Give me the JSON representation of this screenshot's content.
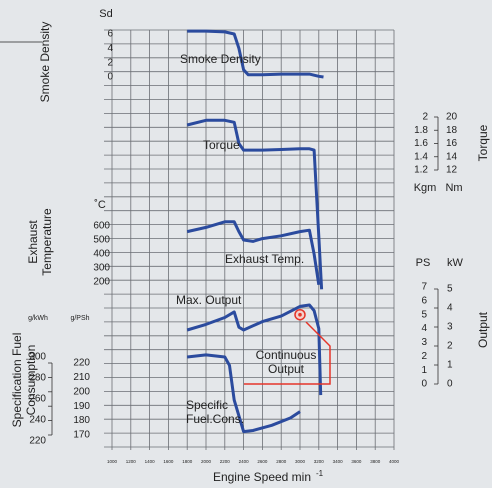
{
  "chart_data": {
    "type": "line",
    "xlabel": "Engine Speed min",
    "xlabel_sup": "-1",
    "xlim": [
      1000,
      4000
    ],
    "xticks": [
      1000,
      1200,
      1400,
      1600,
      1800,
      2000,
      2200,
      2400,
      2600,
      2800,
      3000,
      3200,
      3400,
      3600,
      3800,
      4000
    ],
    "grid": true,
    "color": "#2b4b9e",
    "annotation_color": "#e5352a",
    "panels": [
      {
        "title": [
          "Smoke Density"
        ],
        "annotation": [
          "Smoke Density"
        ],
        "axes": [
          {
            "unit": "Sd",
            "ylim": [
              0,
              6
            ],
            "yticks": [
              0,
              2,
              4,
              6
            ]
          }
        ],
        "x": [
          1800,
          2000,
          2200,
          2300,
          2350,
          2400,
          2450,
          2600,
          2800,
          3000,
          3100,
          3200,
          3250
        ],
        "values": [
          6.4,
          6.4,
          6.3,
          6,
          4,
          1,
          0.3,
          0.3,
          0.4,
          0.4,
          0.4,
          0.1,
          0
        ]
      },
      {
        "title": [
          "Torque"
        ],
        "annotation": [
          "Torque"
        ],
        "axes": [
          {
            "unit": "Kgm",
            "ylim": [
              1.2,
              2.0
            ],
            "yticks": [
              1.2,
              1.4,
              1.6,
              1.8,
              2.0
            ]
          },
          {
            "unit": "Nm",
            "ylim": [
              12,
              20
            ],
            "yticks": [
              12,
              14,
              16,
              18,
              20
            ]
          }
        ],
        "x": [
          1800,
          2000,
          2200,
          2300,
          2350,
          2400,
          2600,
          2800,
          3000,
          3100,
          3150,
          3200,
          3230
        ],
        "values": [
          1.88,
          1.95,
          1.95,
          1.92,
          1.6,
          1.5,
          1.5,
          1.51,
          1.52,
          1.52,
          1.5,
          0.2,
          -0.6
        ]
      },
      {
        "title": [
          "Exhaust",
          "Temperature"
        ],
        "annotation": [
          "Exhaust Temp."
        ],
        "axes": [
          {
            "unit": "˚C",
            "ylim": [
              200,
              600
            ],
            "yticks": [
              200,
              300,
              400,
              500,
              600
            ]
          }
        ],
        "x": [
          1800,
          2000,
          2200,
          2300,
          2350,
          2400,
          2500,
          2600,
          2800,
          3000,
          3100,
          3150,
          3200
        ],
        "values": [
          560,
          590,
          630,
          630,
          560,
          500,
          490,
          510,
          530,
          560,
          570,
          400,
          180
        ]
      },
      {
        "title": [
          "Output"
        ],
        "annotation": [
          "Max. Output"
        ],
        "axes": [
          {
            "unit": "PS",
            "ylim": [
              0,
              7
            ],
            "yticks": [
              0,
              1,
              2,
              3,
              4,
              5,
              6,
              7
            ]
          },
          {
            "unit": "kW",
            "ylim": [
              0,
              5
            ],
            "yticks": [
              0,
              1,
              2,
              3,
              4,
              5
            ]
          }
        ],
        "x": [
          1800,
          2000,
          2200,
          2300,
          2350,
          2400,
          2600,
          2800,
          3000,
          3100,
          3150,
          3200,
          3220
        ],
        "values": [
          3.9,
          4.3,
          4.8,
          5.2,
          4.1,
          3.9,
          4.5,
          4.9,
          5.6,
          5.7,
          5.3,
          4.0,
          -0.8
        ],
        "marker": {
          "x": 3000,
          "value": 5,
          "label": [
            "Continuous",
            "Output"
          ]
        }
      },
      {
        "title": [
          "Specification Fuel",
          "Consumption"
        ],
        "annotation": [
          "Specific",
          "Fuel.Cons."
        ],
        "axes": [
          {
            "unit": "g/kWh",
            "ylim": [
              220,
              300
            ],
            "yticks": [
              220,
              240,
              260,
              280,
              300
            ]
          },
          {
            "unit": "g/PSh",
            "ylim": [
              170,
              220
            ],
            "yticks": [
              170,
              180,
              190,
              200,
              210,
              220
            ]
          }
        ],
        "x": [
          1800,
          2000,
          2200,
          2250,
          2300,
          2400,
          2500,
          2700,
          2900,
          3000
        ],
        "values": [
          300,
          302,
          300,
          292,
          259,
          229,
          230,
          235,
          242,
          248
        ]
      }
    ]
  }
}
